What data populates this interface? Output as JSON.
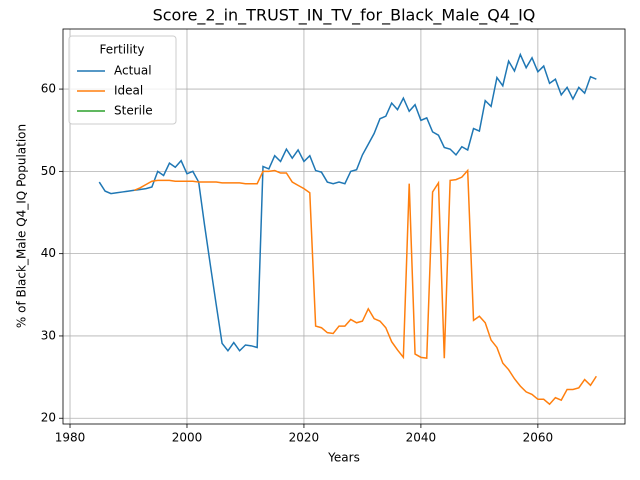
{
  "chart_data": {
    "type": "line",
    "title": "Score_2_in_TRUST_IN_TV_for_Black_Male_Q4_IQ",
    "xlabel": "Years",
    "ylabel": "% of Black_Male Q4_IQ Population",
    "legend_title": "Fertility",
    "legend": "upper left",
    "grid": true,
    "xlim": [
      1978.8,
      2074.9
    ],
    "ylim": [
      19.3,
      67.3
    ],
    "xticks": [
      1980,
      2000,
      2020,
      2040,
      2060
    ],
    "yticks": [
      20,
      30,
      40,
      50,
      60
    ],
    "x": [
      1985,
      1986,
      1987,
      1988,
      1989,
      1990,
      1991,
      1992,
      1993,
      1994,
      1995,
      1996,
      1997,
      1998,
      1999,
      2000,
      2001,
      2002,
      2003,
      2004,
      2005,
      2006,
      2007,
      2008,
      2009,
      2010,
      2011,
      2012,
      2013,
      2014,
      2015,
      2016,
      2017,
      2018,
      2019,
      2020,
      2021,
      2022,
      2023,
      2024,
      2025,
      2026,
      2027,
      2028,
      2029,
      2030,
      2031,
      2032,
      2033,
      2034,
      2035,
      2036,
      2037,
      2038,
      2039,
      2040,
      2041,
      2042,
      2043,
      2044,
      2045,
      2046,
      2047,
      2048,
      2049,
      2050,
      2051,
      2052,
      2053,
      2054,
      2055,
      2056,
      2057,
      2058,
      2059,
      2060,
      2061,
      2062,
      2063,
      2064,
      2065,
      2066,
      2067,
      2068,
      2069,
      2070
    ],
    "series": [
      {
        "name": "Actual",
        "color": "#1f77b4",
        "values": [
          48.7,
          47.6,
          47.3,
          47.4,
          47.5,
          47.6,
          47.7,
          47.8,
          47.9,
          48.1,
          50.0,
          49.5,
          51.0,
          50.5,
          51.3,
          49.7,
          50.0,
          48.7,
          43.5,
          38.6,
          33.8,
          29.1,
          28.2,
          29.2,
          28.2,
          28.9,
          28.8,
          28.6,
          50.6,
          50.3,
          51.9,
          51.2,
          52.7,
          51.6,
          52.6,
          51.2,
          51.9,
          50.1,
          49.9,
          48.7,
          48.5,
          48.7,
          48.5,
          50.0,
          50.2,
          52.0,
          53.3,
          54.6,
          56.4,
          56.7,
          58.3,
          57.5,
          58.9,
          57.3,
          58.1,
          56.2,
          56.5,
          54.8,
          54.4,
          52.9,
          52.7,
          52.0,
          53.0,
          52.6,
          55.2,
          54.9,
          58.6,
          57.9,
          61.4,
          60.4,
          63.4,
          62.2,
          64.2,
          62.6,
          63.8,
          62.1,
          62.8,
          60.7,
          61.2,
          59.3,
          60.2,
          58.8,
          60.2,
          59.5,
          61.5,
          61.2
        ]
      },
      {
        "name": "Ideal",
        "color": "#ff7f0e",
        "values": [
          null,
          null,
          null,
          null,
          null,
          null,
          47.7,
          48.0,
          48.4,
          48.8,
          48.9,
          48.9,
          48.9,
          48.8,
          48.8,
          48.8,
          48.8,
          48.7,
          48.7,
          48.7,
          48.7,
          48.6,
          48.6,
          48.6,
          48.6,
          48.5,
          48.5,
          48.5,
          50.0,
          50.0,
          50.1,
          49.8,
          49.8,
          48.7,
          48.3,
          47.9,
          47.4,
          31.2,
          31.0,
          30.4,
          30.3,
          31.2,
          31.2,
          32.0,
          31.6,
          31.8,
          33.3,
          32.1,
          31.8,
          31.0,
          29.3,
          28.3,
          27.4,
          48.5,
          27.8,
          27.4,
          27.3,
          47.5,
          48.6,
          27.3,
          48.9,
          49.0,
          49.3,
          50.1,
          31.9,
          32.4,
          31.6,
          29.5,
          28.6,
          26.7,
          25.9,
          24.8,
          23.9,
          23.2,
          22.9,
          22.3,
          22.3,
          21.7,
          22.5,
          22.2,
          23.5,
          23.5,
          23.7,
          24.7,
          24.0,
          25.1
        ]
      },
      {
        "name": "Sterile",
        "color": "#2ca02c",
        "values": [
          null,
          null,
          null,
          null,
          null,
          null,
          null,
          null,
          null,
          null,
          null,
          null,
          null,
          null,
          null,
          null,
          null,
          null,
          null,
          null,
          null,
          null,
          null,
          null,
          null,
          null,
          null,
          null,
          null,
          null,
          null,
          null,
          null,
          null,
          null,
          null,
          null,
          null,
          null,
          null,
          null,
          null,
          null,
          null,
          null,
          null,
          null,
          null,
          null,
          null,
          null,
          null,
          null,
          null,
          null,
          null,
          null,
          null,
          null,
          null,
          null,
          null,
          null,
          null,
          null,
          null,
          null,
          null,
          null,
          null,
          null,
          null,
          null,
          null,
          null,
          null,
          null,
          null,
          null,
          null,
          null,
          null,
          null,
          null,
          null,
          null
        ]
      }
    ]
  }
}
